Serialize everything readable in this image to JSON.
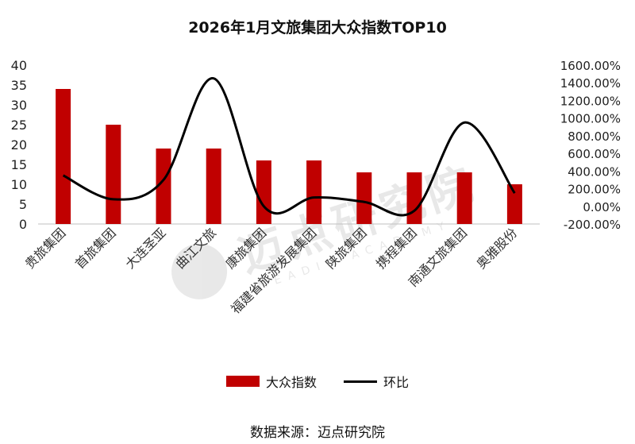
{
  "chart_data": {
    "type": "bar",
    "title": "2026年1月文旅集团大众指数TOP10",
    "categories": [
      "贵旅集团",
      "首旅集团",
      "大连圣亚",
      "曲江文旅",
      "康旅集团",
      "福建省旅游发展集团",
      "陕旅集团",
      "携程集团",
      "南通文旅集团",
      "奥雅股份"
    ],
    "series": [
      {
        "name": "大众指数",
        "type": "bar",
        "axis": "left",
        "values": [
          34,
          25,
          19,
          19,
          16,
          16,
          13,
          13,
          13,
          10
        ]
      },
      {
        "name": "环比",
        "type": "line",
        "axis": "right",
        "unit": "%",
        "values": [
          350,
          80,
          300,
          1450,
          0,
          100,
          50,
          -50,
          950,
          150
        ]
      }
    ],
    "y_left": {
      "min": 0,
      "max": 40,
      "ticks": [
        "0",
        "5",
        "10",
        "15",
        "20",
        "25",
        "30",
        "35",
        "40"
      ]
    },
    "y_right": {
      "min": -200,
      "max": 1600,
      "ticks": [
        "-200.00%",
        "0.00%",
        "200.00%",
        "400.00%",
        "600.00%",
        "800.00%",
        "1000.00%",
        "1200.00%",
        "1400.00%",
        "1600.00%"
      ]
    },
    "legend_position": "bottom",
    "grid": false,
    "colors": {
      "bar": "#c00000",
      "line": "#000000"
    }
  },
  "source": "数据来源：迈点研究院",
  "watermark": {
    "main": "迈点研究院",
    "sub": "MEADIN ACADEMY"
  }
}
